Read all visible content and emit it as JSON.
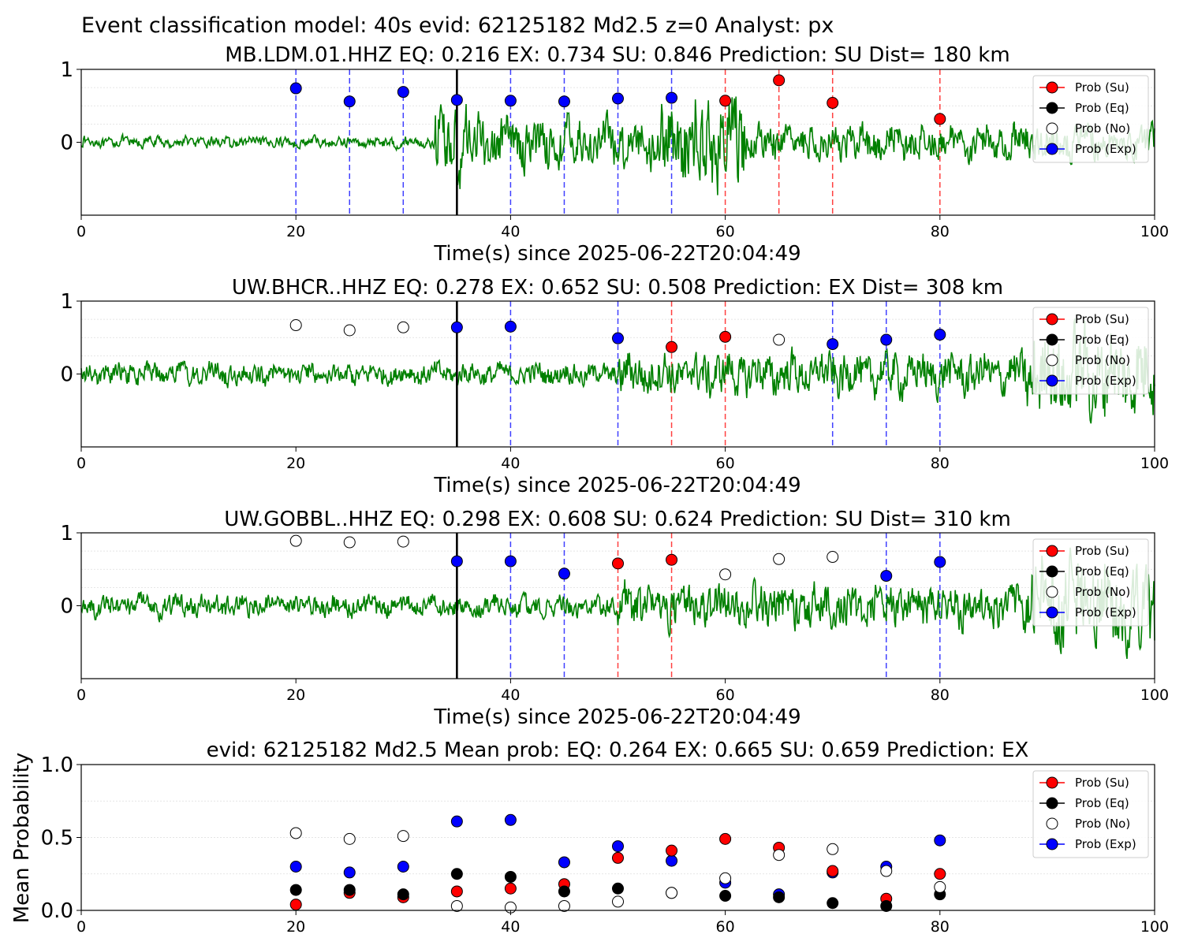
{
  "figure": {
    "suptitle": "Event classification model: 40s evid: 62125182 Md2.5 z=0 Analyst: px",
    "legend_labels": [
      "Prob (Su)",
      "Prob (Eq)",
      "Prob (No)",
      "Prob (Exp)"
    ],
    "colors": {
      "waveform": "#008000",
      "su": "#ff0000",
      "eq": "#000000",
      "no": "#ffffff",
      "exp": "#0000ff",
      "onset": "#000000"
    }
  },
  "chart_data": [
    {
      "type": "line",
      "title": "MB.LDM.01.HHZ   EQ: 0.216  EX: 0.734  SU: 0.846   Prediction: SU    Dist= 180 km",
      "xlabel": "Time(s) since 2025-06-22T20:04:49",
      "xlim": [
        0,
        100
      ],
      "ylim": [
        -1,
        1
      ],
      "xticks": [
        "0",
        "20",
        "40",
        "60",
        "80",
        "100"
      ],
      "yticks": [
        "1",
        "0"
      ],
      "legend_position": "upper right",
      "onset_time": 35,
      "waveform": {
        "series_color": "green",
        "segments": [
          {
            "t0": 0,
            "t1": 33,
            "amp": 0.09
          },
          {
            "t0": 33,
            "t1": 36,
            "amp": 0.6
          },
          {
            "t0": 36,
            "t1": 54,
            "amp": 0.4
          },
          {
            "t0": 54,
            "t1": 62,
            "amp": 0.75
          },
          {
            "t0": 62,
            "t1": 100,
            "amp": 0.3
          }
        ]
      },
      "windows": [
        {
          "t": 20,
          "label": "Exp",
          "prob": 0.74
        },
        {
          "t": 25,
          "label": "Exp",
          "prob": 0.56
        },
        {
          "t": 30,
          "label": "Exp",
          "prob": 0.69
        },
        {
          "t": 35,
          "label": "Exp",
          "prob": 0.58
        },
        {
          "t": 40,
          "label": "Exp",
          "prob": 0.57
        },
        {
          "t": 45,
          "label": "Exp",
          "prob": 0.56
        },
        {
          "t": 50,
          "label": "Exp",
          "prob": 0.6
        },
        {
          "t": 55,
          "label": "Exp",
          "prob": 0.61
        },
        {
          "t": 60,
          "label": "Su",
          "prob": 0.57
        },
        {
          "t": 65,
          "label": "Su",
          "prob": 0.85
        },
        {
          "t": 70,
          "label": "Su",
          "prob": 0.54
        },
        {
          "t": 80,
          "label": "Su",
          "prob": 0.32
        }
      ]
    },
    {
      "type": "line",
      "title": "UW.BHCR..HHZ   EQ: 0.278  EX: 0.652  SU: 0.508   Prediction: EX    Dist= 308 km",
      "xlabel": "Time(s) since 2025-06-22T20:04:49",
      "xlim": [
        0,
        100
      ],
      "ylim": [
        -1,
        1
      ],
      "xticks": [
        "0",
        "20",
        "40",
        "60",
        "80",
        "100"
      ],
      "yticks": [
        "1",
        "0"
      ],
      "legend_position": "upper right",
      "onset_time": 35,
      "waveform": {
        "series_color": "green",
        "segments": [
          {
            "t0": 0,
            "t1": 50,
            "amp": 0.18
          },
          {
            "t0": 50,
            "t1": 88,
            "amp": 0.35
          },
          {
            "t0": 88,
            "t1": 100,
            "amp": 0.75
          }
        ]
      },
      "windows": [
        {
          "t": 20,
          "label": "No",
          "prob": 0.67
        },
        {
          "t": 25,
          "label": "No",
          "prob": 0.6
        },
        {
          "t": 30,
          "label": "No",
          "prob": 0.64
        },
        {
          "t": 35,
          "label": "Exp",
          "prob": 0.64
        },
        {
          "t": 40,
          "label": "Exp",
          "prob": 0.65
        },
        {
          "t": 50,
          "label": "Exp",
          "prob": 0.49
        },
        {
          "t": 55,
          "label": "Su",
          "prob": 0.37
        },
        {
          "t": 60,
          "label": "Su",
          "prob": 0.51
        },
        {
          "t": 65,
          "label": "No",
          "prob": 0.47
        },
        {
          "t": 70,
          "label": "Exp",
          "prob": 0.41
        },
        {
          "t": 75,
          "label": "Exp",
          "prob": 0.47
        },
        {
          "t": 80,
          "label": "Exp",
          "prob": 0.54
        }
      ]
    },
    {
      "type": "line",
      "title": "UW.GOBBL..HHZ   EQ: 0.298  EX: 0.608  SU: 0.624   Prediction: SU    Dist= 310 km",
      "xlabel": "Time(s) since 2025-06-22T20:04:49",
      "xlim": [
        0,
        100
      ],
      "ylim": [
        -1,
        1
      ],
      "xticks": [
        "0",
        "20",
        "40",
        "60",
        "80",
        "100"
      ],
      "yticks": [
        "1",
        "0"
      ],
      "legend_position": "upper right",
      "onset_time": 35,
      "waveform": {
        "series_color": "green",
        "segments": [
          {
            "t0": 0,
            "t1": 50,
            "amp": 0.18
          },
          {
            "t0": 50,
            "t1": 88,
            "amp": 0.35
          },
          {
            "t0": 88,
            "t1": 100,
            "amp": 0.75
          }
        ]
      },
      "windows": [
        {
          "t": 20,
          "label": "No",
          "prob": 0.89
        },
        {
          "t": 25,
          "label": "No",
          "prob": 0.87
        },
        {
          "t": 30,
          "label": "No",
          "prob": 0.88
        },
        {
          "t": 35,
          "label": "Exp",
          "prob": 0.61
        },
        {
          "t": 40,
          "label": "Exp",
          "prob": 0.61
        },
        {
          "t": 45,
          "label": "Exp",
          "prob": 0.44
        },
        {
          "t": 50,
          "label": "Su",
          "prob": 0.58
        },
        {
          "t": 55,
          "label": "Su",
          "prob": 0.63
        },
        {
          "t": 60,
          "label": "No",
          "prob": 0.43
        },
        {
          "t": 65,
          "label": "No",
          "prob": 0.64
        },
        {
          "t": 70,
          "label": "No",
          "prob": 0.67
        },
        {
          "t": 75,
          "label": "Exp",
          "prob": 0.41
        },
        {
          "t": 80,
          "label": "Exp",
          "prob": 0.6
        }
      ]
    },
    {
      "type": "scatter",
      "title": "evid: 62125182  Md2.5   Mean prob:   EQ: 0.264  EX: 0.665  SU: 0.659   Prediction: EX",
      "xlabel": "",
      "ylabel": "Mean Probability",
      "xlim": [
        0,
        100
      ],
      "ylim": [
        0,
        1
      ],
      "xticks": [
        "0",
        "20",
        "40",
        "60",
        "80",
        "100"
      ],
      "yticks": [
        "1.0",
        "0.5",
        "0.0"
      ],
      "legend_position": "upper right",
      "x": [
        20,
        25,
        30,
        35,
        40,
        45,
        50,
        55,
        60,
        65,
        70,
        75,
        80
      ],
      "series": [
        {
          "name": "Prob (Su)",
          "values": [
            0.04,
            0.12,
            0.09,
            0.13,
            0.15,
            0.18,
            0.36,
            0.41,
            0.49,
            0.43,
            0.27,
            0.08,
            0.25
          ]
        },
        {
          "name": "Prob (Eq)",
          "values": [
            0.14,
            0.14,
            0.11,
            0.25,
            0.23,
            0.13,
            0.15,
            0.12,
            0.1,
            0.09,
            0.05,
            0.03,
            0.11
          ]
        },
        {
          "name": "Prob (No)",
          "values": [
            0.53,
            0.49,
            0.51,
            0.03,
            0.02,
            0.03,
            0.06,
            0.12,
            0.22,
            0.38,
            0.42,
            0.27,
            0.16
          ]
        },
        {
          "name": "Prob (Exp)",
          "values": [
            0.3,
            0.26,
            0.3,
            0.61,
            0.62,
            0.33,
            0.44,
            0.34,
            0.19,
            0.11,
            0.26,
            0.3,
            0.48
          ]
        }
      ]
    }
  ]
}
